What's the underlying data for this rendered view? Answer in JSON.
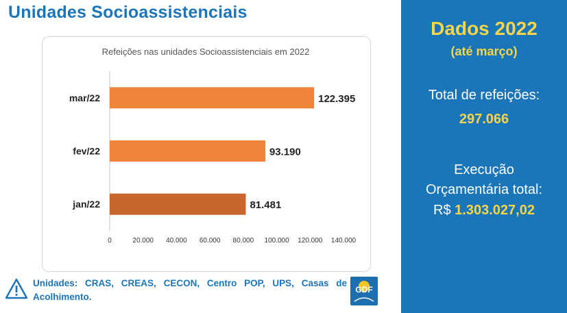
{
  "page": {
    "title": "Unidades Socioassistenciais"
  },
  "right_panel": {
    "title": "Dados 2022",
    "subtitle": "(até março)",
    "total_label": "Total de refeições:",
    "total_value": "297.066",
    "exec_line1": "Execução",
    "exec_line2": "Orçamentária total:",
    "exec_currency": "R$",
    "exec_value": "1.303.027,02"
  },
  "footer": {
    "text": "Unidades: CRAS, CREAS, CECON, Centro POP, UPS, Casas de Acolhimento.",
    "logo_text": "GDF"
  },
  "chart_data": {
    "type": "bar",
    "orientation": "horizontal",
    "title": "Refeições nas unidades Socioassistenciais em 2022",
    "categories": [
      "mar/22",
      "fev/22",
      "jan/22"
    ],
    "values": [
      122395,
      93190,
      81481
    ],
    "value_labels": [
      "122.395",
      "93.190",
      "81.481"
    ],
    "colors": [
      "#ee8339",
      "#ee8339",
      "#c8662e"
    ],
    "xlim": [
      0,
      140000
    ],
    "xticks": [
      0,
      20000,
      40000,
      60000,
      80000,
      100000,
      120000,
      140000
    ],
    "xtick_labels": [
      "0",
      "20.000",
      "40.000",
      "60.000",
      "80.000",
      "100.000",
      "120.000",
      "140.000"
    ],
    "grid": false,
    "xlabel": "",
    "ylabel": ""
  },
  "colors": {
    "accent_blue": "#1b75b9",
    "highlight_yellow": "#f5d54a",
    "bar_orange": "#ee8339",
    "bar_dark_orange": "#c8662e"
  }
}
